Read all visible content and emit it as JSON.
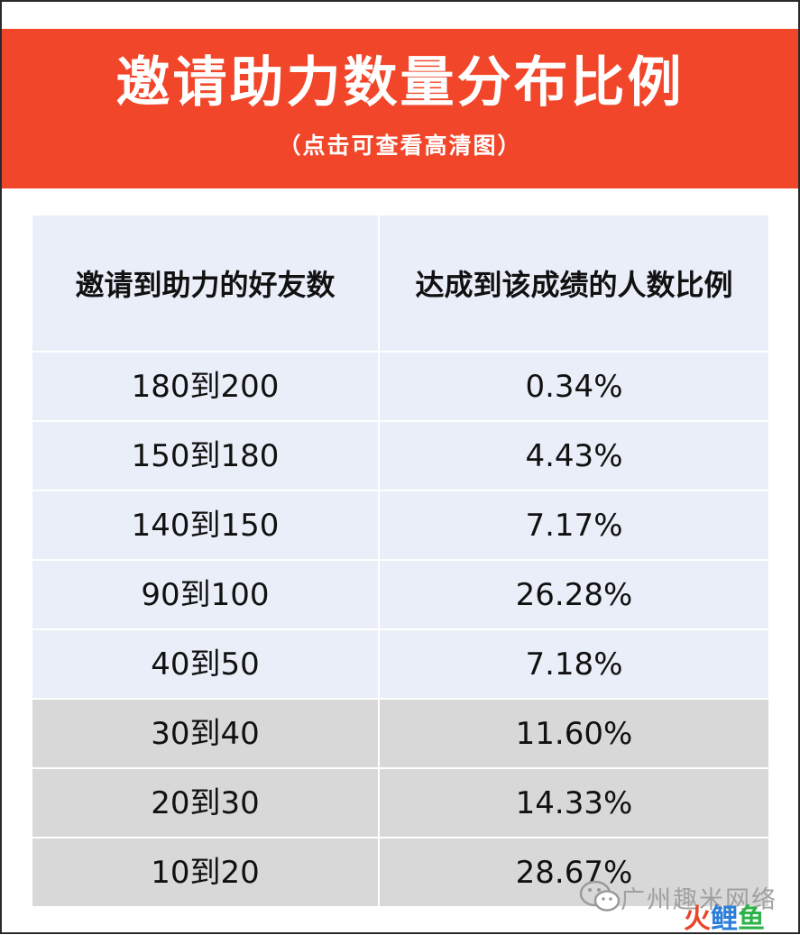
{
  "banner": {
    "title": "邀请助力数量分布比例",
    "subtitle": "（点击可查看高清图）",
    "background_color": "#f2462a"
  },
  "table": {
    "headers": [
      "邀请到助力的好友数",
      "达成到该成绩的人数比例"
    ],
    "rows": [
      {
        "range": "180到200",
        "percent": "0.34%"
      },
      {
        "range": "150到180",
        "percent": "4.43%"
      },
      {
        "range": "140到150",
        "percent": "7.17%"
      },
      {
        "range": "90到100",
        "percent": "26.28%"
      },
      {
        "range": "40到50",
        "percent": "7.18%"
      },
      {
        "range": "30到40",
        "percent": "11.60%"
      },
      {
        "range": "20到30",
        "percent": "14.33%"
      },
      {
        "range": "10到20",
        "percent": "28.67%"
      }
    ],
    "header_row_color": "#eaeef8",
    "light_row_color": "#eaeef8",
    "gray_row_color": "#d8d8d8"
  },
  "watermark": {
    "icon": "wechat-icon",
    "text": "广州趣米网络",
    "logo_parts": [
      "火",
      "鲤",
      "鱼"
    ]
  }
}
